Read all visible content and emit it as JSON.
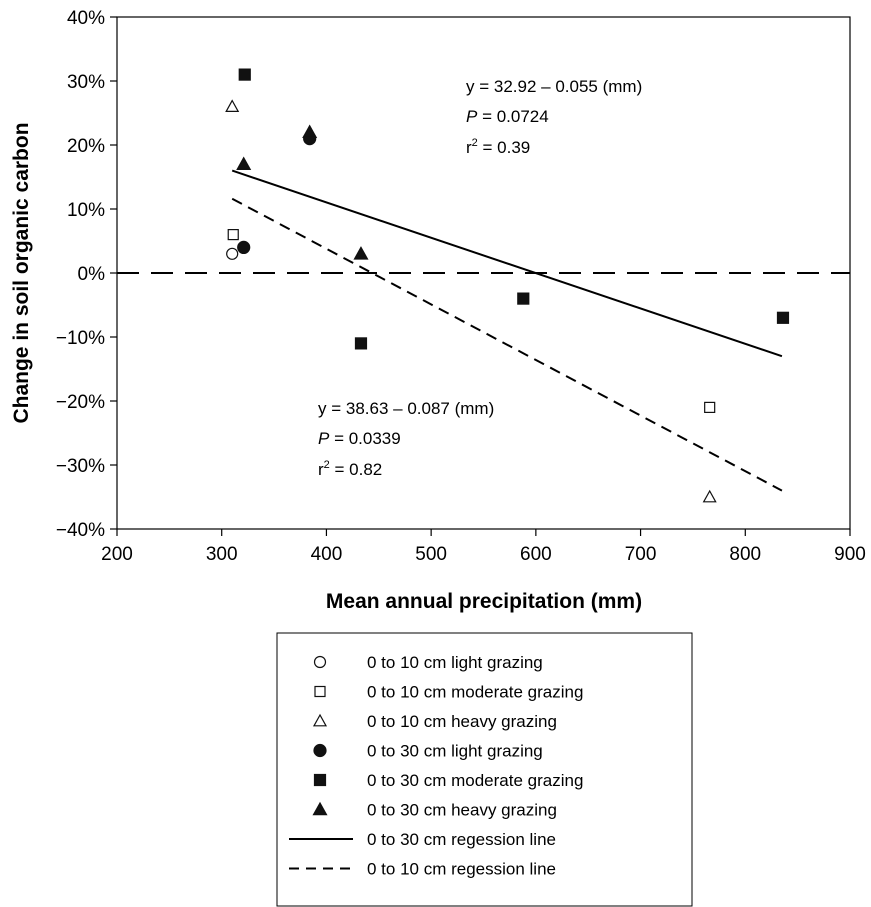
{
  "chart_data": {
    "type": "scatter",
    "title": "",
    "xlabel": "Mean annual precipitation (mm)",
    "ylabel": "Change in soil organic carbon",
    "xlim": [
      200,
      900
    ],
    "ylim": [
      -40,
      40
    ],
    "x_ticks": [
      200,
      300,
      400,
      500,
      600,
      700,
      800,
      900
    ],
    "y_ticks": [
      40,
      30,
      20,
      10,
      0,
      -10,
      -20,
      -30,
      -40
    ],
    "x_tick_labels": [
      "200",
      "300",
      "400",
      "500",
      "600",
      "700",
      "800",
      "900"
    ],
    "y_tick_labels": [
      "40%",
      "30%",
      "20%",
      "10%",
      "0%",
      "−10%",
      "−20%",
      "−30%",
      "−40%"
    ],
    "grid": false,
    "legend_position": "bottom",
    "series": [
      {
        "name": "0 to 10 cm light grazing",
        "marker": "circle-open",
        "points": [
          [
            310,
            3
          ]
        ]
      },
      {
        "name": "0 to 10 cm moderate grazing",
        "marker": "square-open",
        "points": [
          [
            311,
            6
          ],
          [
            766,
            -21
          ]
        ]
      },
      {
        "name": "0 to 10 cm heavy grazing",
        "marker": "triangle-open",
        "points": [
          [
            310,
            26
          ],
          [
            766,
            -35
          ]
        ]
      },
      {
        "name": "0 to 30 cm light grazing",
        "marker": "circle-filled",
        "points": [
          [
            321,
            4
          ],
          [
            384,
            21
          ]
        ]
      },
      {
        "name": "0 to 30 cm moderate grazing",
        "marker": "square-filled",
        "points": [
          [
            322,
            31
          ],
          [
            433,
            -11
          ],
          [
            588,
            -4
          ],
          [
            836,
            -7
          ]
        ]
      },
      {
        "name": "0 to 30 cm heavy grazing",
        "marker": "triangle-filled",
        "points": [
          [
            321,
            17
          ],
          [
            384,
            22
          ],
          [
            433,
            3
          ]
        ]
      }
    ],
    "lines": [
      {
        "name": "0 to 30 cm regession line",
        "style": "solid",
        "x": [
          310,
          835
        ],
        "y": [
          16,
          -13
        ]
      },
      {
        "name": "0 to 10 cm regession line",
        "style": "dashed",
        "x": [
          310,
          835
        ],
        "y": [
          11.6,
          -34
        ]
      },
      {
        "name": "zero-line",
        "style": "long-dashed",
        "x": [
          200,
          900
        ],
        "y": [
          0,
          0
        ]
      }
    ],
    "annotations": [
      {
        "id": "solid",
        "line1": "y = 32.92 – 0.055 (mm)",
        "p_prefix": "P",
        "p_value": " = 0.0724",
        "r_prefix": "r",
        "r_sup": "2",
        "r_value": " = 0.39"
      },
      {
        "id": "dashed",
        "line1": "y = 38.63 – 0.087 (mm)",
        "p_prefix": "P",
        "p_value": " = 0.0339",
        "r_prefix": "r",
        "r_sup": "2",
        "r_value": " = 0.82"
      }
    ],
    "legend": [
      {
        "label": "0 to 10 cm light grazing",
        "symbol": "circle-open"
      },
      {
        "label": "0 to 10 cm moderate grazing",
        "symbol": "square-open"
      },
      {
        "label": "0 to 10 cm heavy grazing",
        "symbol": "triangle-open"
      },
      {
        "label": "0 to 30 cm light grazing",
        "symbol": "circle-filled"
      },
      {
        "label": "0 to 30 cm moderate grazing",
        "symbol": "square-filled"
      },
      {
        "label": "0 to 30 cm heavy grazing",
        "symbol": "triangle-filled"
      },
      {
        "label": "0 to 30 cm regession line",
        "symbol": "line-solid"
      },
      {
        "label": "0 to 10 cm regession line",
        "symbol": "line-dashed"
      }
    ]
  }
}
